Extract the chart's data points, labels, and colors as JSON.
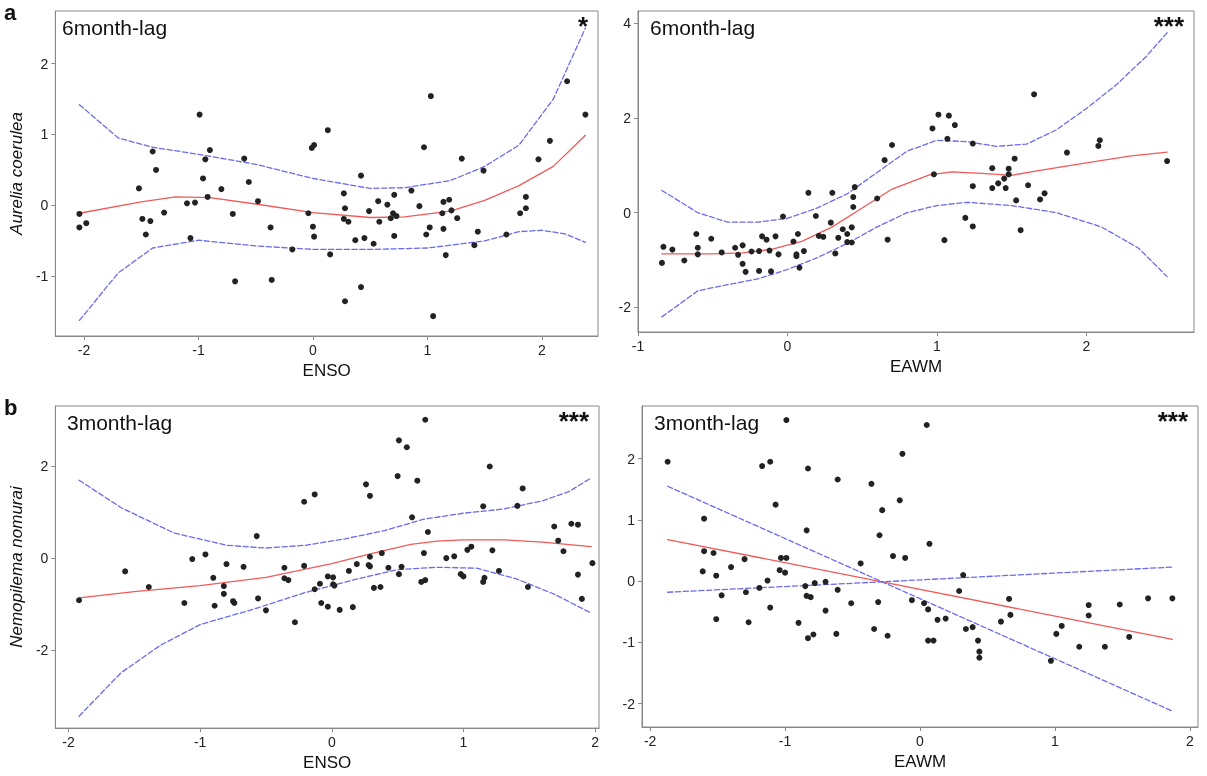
{
  "chart_data": [
    {
      "type": "scatter",
      "xlabel": "ENSO",
      "ylabel": "Aurelia coerulea",
      "annotations": [
        "6month-lag",
        "*",
        "a"
      ],
      "xlim": [
        -2.25,
        2.49
      ],
      "ylim": [
        -1.84,
        2.74
      ],
      "xticks": [
        -2,
        -1,
        0,
        1,
        2
      ],
      "yticks": [
        -1,
        0,
        1,
        2
      ],
      "grid": false,
      "series": [
        {
          "type": "scatter",
          "marker": "circle",
          "color": "#222222",
          "x": [
            -2.04,
            -2.04,
            -1.98,
            -1.52,
            -1.49,
            -1.46,
            -1.42,
            -1.4,
            -1.37,
            -1.3,
            -1.1,
            -1.07,
            -1.03,
            -0.99,
            -0.96,
            -0.94,
            -0.92,
            -0.9,
            -0.8,
            -0.7,
            -0.68,
            -0.6,
            -0.56,
            -0.48,
            -0.37,
            -0.36,
            -0.18,
            -0.04,
            -0.01,
            0.01,
            0.0,
            0.01,
            0.13,
            0.15,
            0.27,
            0.28,
            0.27,
            0.28,
            0.31,
            0.37,
            0.42,
            0.42,
            0.45,
            0.49,
            0.53,
            0.57,
            0.58,
            0.65,
            0.68,
            0.7,
            0.71,
            0.71,
            0.73,
            0.86,
            0.93,
            0.97,
            0.99,
            1.02,
            1.03,
            1.05,
            1.13,
            1.14,
            1.14,
            1.16,
            1.19,
            1.21,
            1.26,
            1.3,
            1.41,
            1.44,
            1.49,
            1.69,
            1.81,
            1.86,
            1.86,
            1.97,
            2.07,
            2.22,
            2.38
          ],
          "values": [
            -0.12,
            -0.31,
            -0.25,
            0.24,
            -0.19,
            -0.41,
            -0.22,
            0.76,
            0.5,
            -0.1,
            0.03,
            -0.46,
            0.04,
            1.28,
            0.38,
            0.65,
            0.12,
            0.78,
            0.23,
            -0.12,
            -1.07,
            0.66,
            0.33,
            0.06,
            -0.31,
            -1.05,
            -0.62,
            -0.11,
            0.81,
            0.85,
            -0.3,
            -0.44,
            1.06,
            -0.69,
            0.17,
            -0.04,
            -0.19,
            -1.35,
            -0.23,
            -0.49,
            0.42,
            -1.15,
            -0.46,
            -0.08,
            -0.54,
            0.06,
            -0.23,
            0.01,
            -0.18,
            -0.11,
            0.15,
            -0.43,
            -0.15,
            0.21,
            -0.01,
            0.82,
            -0.41,
            -0.31,
            1.54,
            -1.56,
            -0.11,
            -0.33,
            0.05,
            -0.7,
            0.08,
            -0.07,
            -0.18,
            0.66,
            -0.56,
            -0.37,
            0.49,
            -0.41,
            -0.11,
            0.12,
            -0.04,
            0.65,
            0.91,
            1.75,
            1.28
          ]
        },
        {
          "type": "line",
          "marker": "none",
          "line_style": "solid",
          "color": "#f05a5a",
          "x": [
            -2.04,
            -1.5,
            -1.2,
            -0.9,
            -0.5,
            0,
            0.5,
            0.8,
            1.2,
            1.5,
            1.8,
            2.1,
            2.38
          ],
          "values": [
            -0.11,
            0.05,
            0.12,
            0.11,
            0.02,
            -0.1,
            -0.17,
            -0.16,
            -0.08,
            0.07,
            0.28,
            0.55,
            0.99
          ]
        },
        {
          "type": "line",
          "marker": "none",
          "line_style": "dashed",
          "color": "#6b6bf0",
          "x": [
            -2.04,
            -1.7,
            -1.4,
            -1,
            -0.5,
            0,
            0.5,
            0.8,
            1.2,
            1.5,
            1.8,
            2.1,
            2.38
          ],
          "values": [
            1.42,
            0.95,
            0.82,
            0.72,
            0.58,
            0.38,
            0.24,
            0.25,
            0.35,
            0.55,
            0.85,
            1.5,
            2.5
          ]
        },
        {
          "type": "line",
          "marker": "none",
          "line_style": "dashed",
          "color": "#6b6bf0",
          "x": [
            -2.04,
            -1.7,
            -1.4,
            -1,
            -0.5,
            0,
            0.5,
            1,
            1.5,
            1.8,
            2.0,
            2.2,
            2.38
          ],
          "values": [
            -1.62,
            -0.95,
            -0.6,
            -0.49,
            -0.57,
            -0.62,
            -0.62,
            -0.6,
            -0.5,
            -0.37,
            -0.35,
            -0.4,
            -0.52
          ]
        }
      ]
    },
    {
      "type": "scatter",
      "xlabel": "EAWM",
      "annotations": [
        "6month-lag",
        "***"
      ],
      "xlim": [
        -1.0,
        2.72
      ],
      "ylim": [
        -2.52,
        4.26
      ],
      "xticks": [
        -1,
        0,
        1,
        2
      ],
      "yticks": [
        -2,
        0,
        2,
        4
      ],
      "grid": false,
      "series": [
        {
          "type": "scatter",
          "marker": "circle",
          "color": "#222222",
          "x": [
            -0.84,
            -0.83,
            -0.77,
            -0.69,
            -0.61,
            -0.6,
            -0.6,
            -0.51,
            -0.44,
            -0.35,
            -0.33,
            -0.3,
            -0.3,
            -0.28,
            -0.24,
            -0.19,
            -0.19,
            -0.17,
            -0.14,
            -0.12,
            -0.11,
            -0.08,
            -0.06,
            -0.03,
            0.04,
            0.06,
            0.06,
            0.07,
            0.08,
            0.11,
            0.14,
            0.19,
            0.21,
            0.24,
            0.29,
            0.3,
            0.32,
            0.34,
            0.37,
            0.4,
            0.4,
            0.43,
            0.43,
            0.44,
            0.44,
            0.45,
            0.6,
            0.65,
            0.67,
            0.7,
            0.97,
            0.98,
            1.01,
            1.05,
            1.07,
            1.08,
            1.12,
            1.19,
            1.24,
            1.24,
            1.24,
            1.37,
            1.37,
            1.41,
            1.45,
            1.46,
            1.48,
            1.48,
            1.52,
            1.53,
            1.56,
            1.61,
            1.65,
            1.69,
            1.72,
            1.87,
            2.08,
            2.09,
            2.54
          ],
          "values": [
            -1.06,
            -0.72,
            -0.78,
            -1.01,
            -0.45,
            -0.74,
            -0.88,
            -0.55,
            -0.84,
            -0.74,
            -0.89,
            -0.69,
            -1.08,
            -1.25,
            -0.82,
            -0.81,
            -1.23,
            -0.5,
            -0.57,
            -0.8,
            -1.24,
            -0.5,
            -0.88,
            -0.08,
            -0.61,
            -0.88,
            -0.92,
            -0.45,
            -1.16,
            -0.81,
            0.42,
            -0.07,
            -0.49,
            -0.51,
            -0.21,
            0.42,
            -0.86,
            -0.53,
            -0.35,
            -0.45,
            -0.62,
            -0.31,
            -0.63,
            0.12,
            0.33,
            0.54,
            0.3,
            1.11,
            -0.57,
            1.43,
            1.78,
            0.81,
            2.07,
            -0.58,
            1.56,
            2.05,
            1.85,
            -0.11,
            1.46,
            0.56,
            -0.29,
            0.94,
            0.52,
            0.62,
            0.72,
            0.52,
            0.81,
            0.93,
            1.14,
            0.26,
            -0.37,
            0.58,
            2.5,
            0.28,
            0.41,
            1.27,
            1.41,
            1.53,
            1.09
          ]
        },
        {
          "type": "line",
          "marker": "none",
          "line_style": "solid",
          "color": "#f05a5a",
          "x": [
            -0.84,
            -0.5,
            -0.3,
            -0.1,
            0.1,
            0.3,
            0.5,
            0.7,
            0.95,
            1.1,
            1.3,
            1.5,
            1.7,
            2.0,
            2.3,
            2.54
          ],
          "values": [
            -0.87,
            -0.87,
            -0.85,
            -0.77,
            -0.6,
            -0.3,
            0.1,
            0.5,
            0.8,
            0.86,
            0.83,
            0.79,
            0.9,
            1.05,
            1.2,
            1.28
          ]
        },
        {
          "type": "line",
          "marker": "none",
          "line_style": "dashed",
          "color": "#6b6bf0",
          "x": [
            -0.84,
            -0.6,
            -0.4,
            -0.2,
            0,
            0.2,
            0.4,
            0.6,
            0.8,
            1.0,
            1.2,
            1.4,
            1.6,
            1.8,
            2.0,
            2.2,
            2.4,
            2.54
          ],
          "values": [
            0.47,
            0.0,
            -0.2,
            -0.2,
            -0.12,
            0.1,
            0.4,
            0.85,
            1.3,
            1.53,
            1.5,
            1.4,
            1.45,
            1.75,
            2.2,
            2.7,
            3.3,
            3.8
          ]
        },
        {
          "type": "line",
          "marker": "none",
          "line_style": "dashed",
          "color": "#6b6bf0",
          "x": [
            -0.84,
            -0.6,
            -0.4,
            -0.2,
            0,
            0.2,
            0.4,
            0.6,
            0.8,
            1.0,
            1.2,
            1.5,
            1.8,
            2.1,
            2.35,
            2.54
          ],
          "values": [
            -2.2,
            -1.65,
            -1.52,
            -1.4,
            -1.2,
            -0.95,
            -0.65,
            -0.3,
            0.0,
            0.15,
            0.22,
            0.15,
            0.0,
            -0.3,
            -0.75,
            -1.35
          ]
        }
      ]
    },
    {
      "type": "scatter",
      "xlabel": "ENSO",
      "ylabel": "Nemopilema nomurai",
      "annotations": [
        "3month-lag",
        "***",
        "b"
      ],
      "xlim": [
        -2.1,
        2.03
      ],
      "ylim": [
        -3.71,
        3.32
      ],
      "xticks": [
        -2,
        -1,
        0,
        1,
        2
      ],
      "yticks": [
        -2,
        0,
        2
      ],
      "grid": false,
      "series": [
        {
          "type": "scatter",
          "marker": "circle",
          "color": "#222222",
          "x": [
            -1.92,
            -1.57,
            -1.39,
            -1.12,
            -1.06,
            -0.96,
            -0.9,
            -0.89,
            -0.82,
            -0.82,
            -0.8,
            -0.75,
            -0.74,
            -0.67,
            -0.57,
            -0.56,
            -0.5,
            -0.36,
            -0.36,
            -0.33,
            -0.28,
            -0.21,
            -0.21,
            -0.13,
            -0.13,
            -0.09,
            -0.08,
            -0.03,
            -0.03,
            0.01,
            0.01,
            0.02,
            0.06,
            0.13,
            0.16,
            0.19,
            0.26,
            0.28,
            0.29,
            0.29,
            0.29,
            0.32,
            0.37,
            0.38,
            0.43,
            0.5,
            0.51,
            0.51,
            0.53,
            0.57,
            0.61,
            0.65,
            0.68,
            0.7,
            0.71,
            0.71,
            0.73,
            0.87,
            0.93,
            0.98,
            1.0,
            1.03,
            1.06,
            1.15,
            1.15,
            1.16,
            1.2,
            1.22,
            1.27,
            1.41,
            1.45,
            1.49,
            1.69,
            1.72,
            1.76,
            1.82,
            1.87,
            1.87,
            1.9,
            1.98
          ],
          "values": [
            -0.92,
            -0.29,
            -0.63,
            -0.98,
            -0.02,
            0.08,
            -0.43,
            -1.04,
            -0.78,
            -0.61,
            -0.13,
            -0.94,
            -0.98,
            -0.19,
            0.48,
            -0.88,
            -1.14,
            -0.21,
            -0.44,
            -0.48,
            -1.4,
            1.23,
            -0.17,
            1.39,
            -0.68,
            -0.56,
            -0.98,
            -0.4,
            -1.06,
            -0.42,
            -0.57,
            -0.6,
            -1.13,
            -0.28,
            -1.07,
            -0.13,
            1.61,
            -0.15,
            1.36,
            0.03,
            -0.18,
            -0.65,
            -0.63,
            0.11,
            -0.21,
            1.79,
            2.57,
            -0.35,
            -0.19,
            2.42,
            0.89,
            1.69,
            -0.52,
            0.11,
            -0.48,
            3.02,
            0.57,
            0.0,
            0.04,
            -0.35,
            -0.4,
            0.18,
            0.25,
            1.13,
            -0.52,
            -0.43,
            2.0,
            0.17,
            -0.28,
            1.14,
            1.52,
            -0.63,
            0.69,
            0.38,
            0.15,
            0.75,
            0.73,
            -0.36,
            -0.89,
            -0.11
          ]
        },
        {
          "type": "line",
          "marker": "none",
          "line_style": "solid",
          "color": "#f05a5a",
          "x": [
            -1.92,
            -1.5,
            -1.0,
            -0.5,
            0,
            0.3,
            0.6,
            0.8,
            1.0,
            1.3,
            1.6,
            1.97
          ],
          "values": [
            -0.87,
            -0.73,
            -0.6,
            -0.42,
            -0.12,
            0.1,
            0.3,
            0.37,
            0.4,
            0.4,
            0.35,
            0.25
          ]
        },
        {
          "type": "line",
          "marker": "none",
          "line_style": "dashed",
          "color": "#6b6bf0",
          "x": [
            -1.92,
            -1.6,
            -1.2,
            -0.8,
            -0.5,
            -0.2,
            0.1,
            0.4,
            0.7,
            1.0,
            1.3,
            1.6,
            1.8,
            1.97
          ],
          "values": [
            1.7,
            1.1,
            0.55,
            0.28,
            0.22,
            0.28,
            0.42,
            0.6,
            0.85,
            0.98,
            1.07,
            1.25,
            1.45,
            1.75
          ]
        },
        {
          "type": "line",
          "marker": "none",
          "line_style": "dashed",
          "color": "#6b6bf0",
          "x": [
            -1.92,
            -1.6,
            -1.3,
            -1.0,
            -0.6,
            -0.2,
            0.2,
            0.5,
            0.8,
            1.1,
            1.4,
            1.7,
            1.97
          ],
          "values": [
            -3.45,
            -2.5,
            -1.9,
            -1.45,
            -1.12,
            -0.75,
            -0.45,
            -0.25,
            -0.2,
            -0.22,
            -0.45,
            -0.8,
            -1.2
          ]
        }
      ]
    },
    {
      "type": "scatter",
      "xlabel": "EAWM",
      "annotations": [
        "3month-lag",
        "***"
      ],
      "xlim": [
        -2.06,
        2.06
      ],
      "ylim": [
        -2.38,
        2.86
      ],
      "xticks": [
        -2,
        -1,
        0,
        1,
        2
      ],
      "yticks": [
        -2,
        -1,
        0,
        1,
        2
      ],
      "grid": false,
      "series": [
        {
          "type": "scatter",
          "marker": "circle",
          "color": "#222222",
          "x": [
            -1.87,
            -1.61,
            -1.6,
            -1.6,
            -1.53,
            -1.51,
            -1.51,
            -1.47,
            -1.4,
            -1.3,
            -1.29,
            -1.27,
            -1.19,
            -1.17,
            -1.13,
            -1.11,
            -1.11,
            -1.07,
            -1.04,
            -1.03,
            -1.0,
            -0.99,
            -0.99,
            -0.9,
            -0.85,
            -0.84,
            -0.84,
            -0.83,
            -0.83,
            -0.81,
            -0.79,
            -0.78,
            -0.7,
            -0.7,
            -0.62,
            -0.61,
            -0.61,
            -0.51,
            -0.44,
            -0.36,
            -0.34,
            -0.31,
            -0.3,
            -0.28,
            -0.24,
            -0.2,
            -0.15,
            -0.13,
            -0.11,
            -0.06,
            0.03,
            0.05,
            0.06,
            0.06,
            0.07,
            0.1,
            0.13,
            0.19,
            0.29,
            0.32,
            0.34,
            0.39,
            0.43,
            0.44,
            0.44,
            0.6,
            0.66,
            0.67,
            0.97,
            1.01,
            1.05,
            1.18,
            1.25,
            1.25,
            1.37,
            1.48,
            1.55,
            1.69,
            1.87
          ],
          "values": [
            1.95,
            0.16,
            1.02,
            0.49,
            0.46,
            0.09,
            -0.62,
            -0.23,
            0.23,
            0.36,
            -0.18,
            -0.67,
            -0.11,
            1.88,
            0.01,
            1.95,
            -0.43,
            1.25,
            0.18,
            0.38,
            0.14,
            0.38,
            2.63,
            -0.68,
            -0.08,
            -0.24,
            0.83,
            1.84,
            -0.93,
            -0.26,
            -0.87,
            -0.03,
            -0.48,
            -0.01,
            -0.86,
            1.66,
            -0.14,
            -0.36,
            0.29,
            1.59,
            -0.78,
            -0.34,
            0.75,
            1.16,
            -0.89,
            0.41,
            1.32,
            2.08,
            0.38,
            -0.31,
            -0.36,
            2.55,
            -0.97,
            -0.46,
            0.61,
            -0.97,
            -0.63,
            -0.61,
            -0.16,
            0.1,
            -0.78,
            -0.75,
            -0.97,
            -1.15,
            -1.25,
            -0.66,
            -0.29,
            -0.55,
            -1.3,
            -0.86,
            -0.73,
            -1.07,
            -0.39,
            -0.56,
            -1.07,
            -0.38,
            -0.91,
            -0.28,
            -0.28
          ]
        },
        {
          "type": "line",
          "marker": "none",
          "line_style": "solid",
          "color": "#f05a5a",
          "x": [
            -1.87,
            -0.28,
            1.87
          ],
          "values": [
            0.68,
            -0.01,
            -0.95
          ]
        },
        {
          "type": "line",
          "marker": "none",
          "line_style": "dashed",
          "color": "#6b6bf0",
          "x": [
            -1.87,
            -0.28,
            1.87
          ],
          "values": [
            1.55,
            -0.01,
            -2.12
          ]
        },
        {
          "type": "line",
          "marker": "none",
          "line_style": "dashed",
          "color": "#6b6bf0",
          "x": [
            -1.87,
            -0.28,
            1.87
          ],
          "values": [
            -0.18,
            -0.01,
            0.23
          ]
        }
      ]
    }
  ]
}
